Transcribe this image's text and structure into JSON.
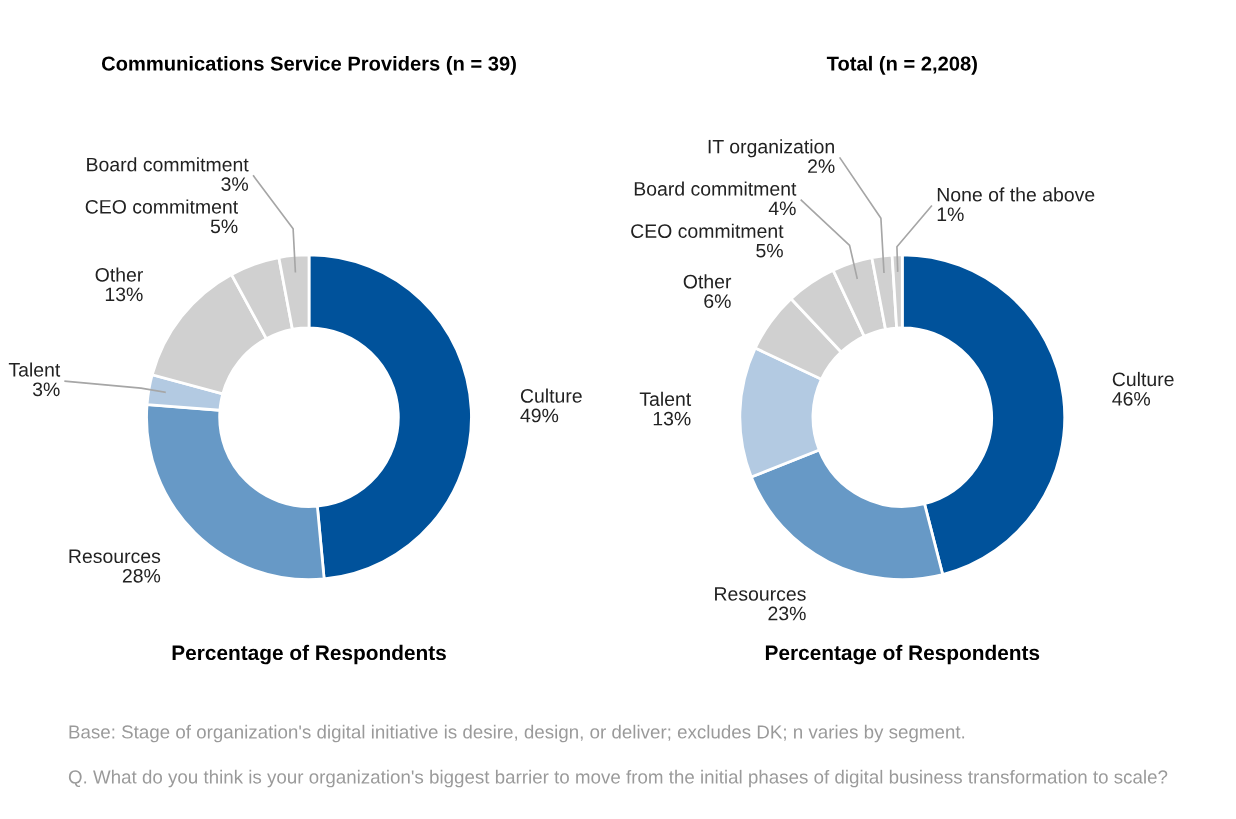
{
  "chart_data": [
    {
      "type": "donut",
      "title": "Communications Service Providers (n = 39)",
      "xlabel": "Percentage of Respondents",
      "categories": [
        "Culture",
        "Resources",
        "Talent",
        "Other",
        "CEO commitment",
        "Board commitment"
      ],
      "values": [
        49,
        28,
        3,
        13,
        5,
        3
      ],
      "value_labels": [
        "49%",
        "28%",
        "3%",
        "13%",
        "5%",
        "3%"
      ],
      "colors": [
        "#00529b",
        "#6799c6",
        "#b3cae2",
        "#d0d0d0",
        "#d0d0d0",
        "#d0d0d0"
      ],
      "annotations": [
        "Base: Stage of organization's digital initiative is desire, design, or deliver; excludes DK; n varies by segment.",
        "Q. What do you think is your organization's biggest barrier to move from the initial phases of digital business transformation to scale?"
      ]
    },
    {
      "type": "donut",
      "title": "Total (n = 2,208)",
      "xlabel": "Percentage of Respondents",
      "categories": [
        "Culture",
        "Resources",
        "Talent",
        "Other",
        "CEO commitment",
        "Board commitment",
        "IT organization",
        "None of the above"
      ],
      "values": [
        46,
        23,
        13,
        6,
        5,
        4,
        2,
        1
      ],
      "value_labels": [
        "46%",
        "23%",
        "13%",
        "6%",
        "5%",
        "4%",
        "2%",
        "1%"
      ],
      "colors": [
        "#00529b",
        "#6799c6",
        "#b3cae2",
        "#d0d0d0",
        "#d0d0d0",
        "#d0d0d0",
        "#d0d0d0",
        "#d0d0d0"
      ]
    }
  ]
}
